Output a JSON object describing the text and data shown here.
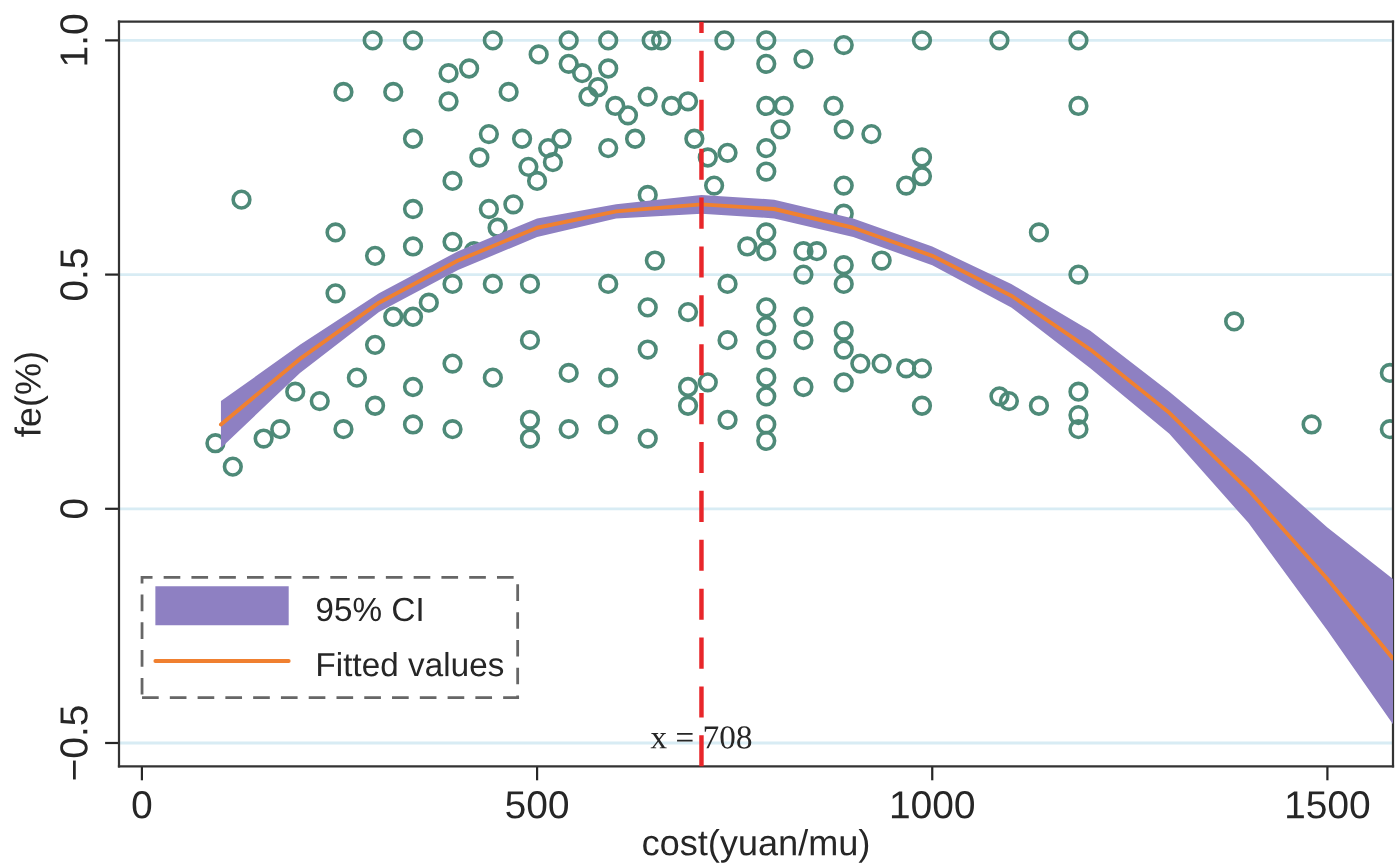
{
  "chart_data": {
    "type": "scatter",
    "xlabel": "cost(yuan/mu)",
    "ylabel": "fe(%)",
    "xlim": [
      -29,
      1583
    ],
    "ylim": [
      -0.55,
      1.04
    ],
    "xticks": [
      0,
      500,
      1000,
      1500
    ],
    "yticks": [
      {
        "value": -0.5,
        "label": "−0.5"
      },
      0,
      {
        "value": 0.5,
        "label": "0.5"
      },
      {
        "value": 1,
        "label": "1.0"
      }
    ],
    "grid": "y",
    "legend": "bottom left",
    "annotations": [
      "95% CI"
    ],
    "ref_lines": [
      {
        "axis": "x",
        "value": 708,
        "label": "x = 708",
        "color": "#e8262a",
        "line_style": "dashed"
      }
    ],
    "series": [
      {
        "marker": "circle",
        "color": "#4e8a78",
        "x": [
          93,
          115,
          126,
          154,
          175,
          194,
          225,
          245,
          255,
          245,
          255,
          272,
          292,
          295,
          295,
          295,
          318,
          318,
          343,
          343,
          343,
          343,
          343,
          343,
          343,
          363,
          388,
          388,
          393,
          393,
          393,
          393,
          393,
          414,
          427,
          439,
          439,
          444,
          444,
          444,
          464,
          481,
          489,
          491,
          491,
          491,
          491,
          502,
          514,
          531,
          540,
          540,
          540,
          540,
          557,
          565,
          577,
          590,
          590,
          590,
          590,
          590,
          590,
          599,
          615,
          624,
          640,
          640,
          640,
          640,
          640,
          645,
          657,
          649,
          670,
          691,
          691,
          691,
          691,
          699,
          716,
          716,
          724,
          737,
          741,
          741,
          741,
          741,
          766,
          790,
          790,
          790,
          790,
          790,
          790,
          790,
          790,
          790,
          790,
          790,
          790,
          790,
          790,
          808,
          812,
          837,
          837,
          837,
          837,
          837,
          837,
          854,
          875,
          888,
          888,
          888,
          888,
          888,
          888,
          888,
          888,
          888,
          909,
          923,
          936,
          936,
          967,
          967,
          987,
          987,
          987,
          987,
          987,
          1085,
          1085,
          1097,
          1135,
          1135,
          1185,
          1185,
          1185,
          1185,
          1185,
          1185,
          1382,
          1480,
          1579,
          1579,
          420,
          450,
          470,
          500,
          520
        ],
        "values": [
          0.14,
          0.09,
          0.66,
          0.15,
          0.17,
          0.25,
          0.23,
          0.59,
          0.17,
          0.46,
          0.89,
          0.28,
          1.0,
          0.54,
          0.35,
          0.22,
          0.89,
          0.41,
          1.0,
          0.79,
          0.64,
          0.56,
          0.41,
          0.26,
          0.18,
          0.44,
          0.93,
          0.87,
          0.7,
          0.57,
          0.48,
          0.31,
          0.17,
          0.94,
          0.75,
          0.8,
          0.64,
          0.48,
          0.28,
          1.0,
          0.89,
          0.79,
          0.73,
          0.48,
          0.36,
          0.19,
          0.15,
          0.97,
          0.77,
          0.79,
          1.0,
          0.95,
          0.29,
          0.17,
          0.93,
          0.88,
          0.9,
          1.0,
          0.94,
          0.77,
          0.48,
          0.28,
          0.18,
          0.86,
          0.84,
          0.79,
          0.88,
          0.67,
          0.43,
          0.34,
          0.15,
          1.0,
          1.0,
          0.53,
          0.86,
          0.87,
          0.42,
          0.26,
          0.22,
          0.79,
          0.75,
          0.27,
          0.69,
          1.0,
          0.76,
          0.48,
          0.36,
          0.19,
          0.56,
          1.0,
          0.95,
          0.86,
          0.77,
          0.72,
          0.59,
          0.55,
          0.43,
          0.39,
          0.34,
          0.28,
          0.24,
          0.18,
          0.145,
          0.81,
          0.86,
          0.96,
          0.55,
          0.5,
          0.41,
          0.36,
          0.26,
          0.55,
          0.86,
          0.99,
          0.81,
          0.69,
          0.63,
          0.52,
          0.48,
          0.38,
          0.34,
          0.27,
          0.31,
          0.8,
          0.53,
          0.31,
          0.69,
          0.3,
          1.0,
          0.75,
          0.71,
          0.3,
          0.22,
          1.0,
          0.24,
          0.23,
          0.59,
          0.22,
          1.0,
          0.86,
          0.5,
          0.25,
          0.2,
          0.17,
          0.4,
          0.18,
          0.29,
          0.17,
          0.55,
          0.6,
          0.65,
          0.7,
          0.74
        ]
      },
      {
        "type": "line",
        "name": "Fitted values",
        "color": "#f08030",
        "x": [
          100,
          200,
          300,
          400,
          500,
          600,
          708,
          800,
          900,
          1000,
          1100,
          1200,
          1300,
          1400,
          1500,
          1583
        ],
        "values": [
          0.18,
          0.32,
          0.44,
          0.53,
          0.6,
          0.635,
          0.65,
          0.64,
          0.6,
          0.54,
          0.455,
          0.34,
          0.205,
          0.04,
          -0.15,
          -0.32
        ],
        "lower": [
          0.13,
          0.29,
          0.42,
          0.51,
          0.58,
          0.62,
          0.63,
          0.62,
          0.58,
          0.52,
          0.43,
          0.3,
          0.16,
          -0.03,
          -0.26,
          -0.46
        ],
        "upper": [
          0.23,
          0.35,
          0.46,
          0.55,
          0.62,
          0.65,
          0.67,
          0.66,
          0.62,
          0.56,
          0.48,
          0.38,
          0.25,
          0.11,
          -0.04,
          -0.15
        ]
      }
    ]
  }
}
